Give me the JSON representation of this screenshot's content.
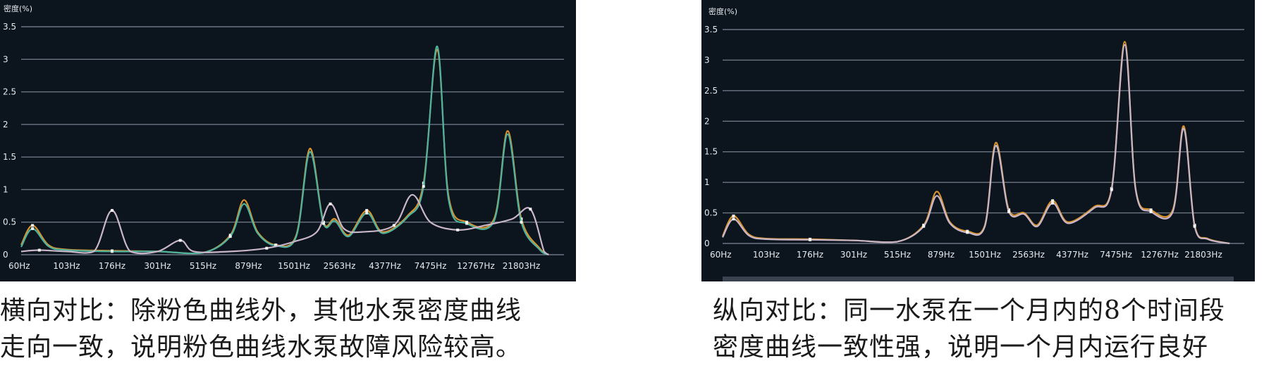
{
  "chart_data": [
    {
      "type": "line",
      "ylabel": "密度(%)",
      "ylim": [
        0,
        3.5
      ],
      "yticks": [
        "0",
        "0.5",
        "1",
        "1.5",
        "2",
        "2.5",
        "3",
        "3.5"
      ],
      "categories": [
        "60Hz",
        "103Hz",
        "176Hz",
        "301Hz",
        "515Hz",
        "879Hz",
        "1501Hz",
        "2563Hz",
        "4377Hz",
        "7475Hz",
        "12767Hz",
        "21803Hz"
      ],
      "grid": true,
      "series": [
        {
          "color": "#d9932e",
          "points": [
            [
              0,
              0.15
            ],
            [
              0.25,
              0.45
            ],
            [
              0.6,
              0.15
            ],
            [
              1,
              0.08
            ],
            [
              2,
              0.06
            ],
            [
              3,
              0.05
            ],
            [
              4,
              0.03
            ],
            [
              4.6,
              0.3
            ],
            [
              4.9,
              0.84
            ],
            [
              5.2,
              0.35
            ],
            [
              5.6,
              0.15
            ],
            [
              6.05,
              0.3
            ],
            [
              6.35,
              1.63
            ],
            [
              6.65,
              0.5
            ],
            [
              6.9,
              0.55
            ],
            [
              7.2,
              0.3
            ],
            [
              7.6,
              0.68
            ],
            [
              7.95,
              0.35
            ],
            [
              8.5,
              0.6
            ],
            [
              8.85,
              1.1
            ],
            [
              9.15,
              3.15
            ],
            [
              9.4,
              0.9
            ],
            [
              9.8,
              0.5
            ],
            [
              10.4,
              0.55
            ],
            [
              10.7,
              1.9
            ],
            [
              11.0,
              0.55
            ],
            [
              11.4,
              0.1
            ],
            [
              11.6,
              0.0
            ]
          ]
        },
        {
          "color": "#4db3a0",
          "points": [
            [
              0,
              0.12
            ],
            [
              0.25,
              0.4
            ],
            [
              0.6,
              0.13
            ],
            [
              1,
              0.07
            ],
            [
              2,
              0.05
            ],
            [
              3,
              0.05
            ],
            [
              4,
              0.03
            ],
            [
              4.6,
              0.28
            ],
            [
              4.9,
              0.78
            ],
            [
              5.2,
              0.33
            ],
            [
              5.6,
              0.14
            ],
            [
              6.05,
              0.28
            ],
            [
              6.35,
              1.58
            ],
            [
              6.65,
              0.48
            ],
            [
              6.9,
              0.52
            ],
            [
              7.2,
              0.28
            ],
            [
              7.6,
              0.64
            ],
            [
              7.95,
              0.33
            ],
            [
              8.5,
              0.58
            ],
            [
              8.85,
              1.05
            ],
            [
              9.15,
              3.2
            ],
            [
              9.4,
              0.85
            ],
            [
              9.8,
              0.48
            ],
            [
              10.4,
              0.52
            ],
            [
              10.7,
              1.85
            ],
            [
              11.0,
              0.5
            ],
            [
              11.4,
              0.08
            ],
            [
              11.6,
              0.0
            ]
          ]
        },
        {
          "color": "#c9b7c9",
          "points": [
            [
              0,
              0.05
            ],
            [
              0.4,
              0.07
            ],
            [
              1,
              0.05
            ],
            [
              1.6,
              0.05
            ],
            [
              2.0,
              0.68
            ],
            [
              2.4,
              0.05
            ],
            [
              3.0,
              0.05
            ],
            [
              3.5,
              0.22
            ],
            [
              3.8,
              0.05
            ],
            [
              4.6,
              0.05
            ],
            [
              5.4,
              0.1
            ],
            [
              6.0,
              0.2
            ],
            [
              6.5,
              0.35
            ],
            [
              6.8,
              0.78
            ],
            [
              7.1,
              0.4
            ],
            [
              7.5,
              0.35
            ],
            [
              8.2,
              0.45
            ],
            [
              8.6,
              0.92
            ],
            [
              9.0,
              0.5
            ],
            [
              9.6,
              0.38
            ],
            [
              10.2,
              0.45
            ],
            [
              10.8,
              0.55
            ],
            [
              11.2,
              0.7
            ],
            [
              11.5,
              0.05
            ],
            [
              11.6,
              0.0
            ]
          ]
        }
      ]
    },
    {
      "type": "line",
      "ylabel": "密度(%)",
      "ylim": [
        0,
        3.5
      ],
      "yticks": [
        "0",
        "0.5",
        "1",
        "1.5",
        "2",
        "2.5",
        "3",
        "3.5"
      ],
      "categories": [
        "60Hz",
        "103Hz",
        "176Hz",
        "301Hz",
        "515Hz",
        "879Hz",
        "1501Hz",
        "2563Hz",
        "4377Hz",
        "7475Hz",
        "12767Hz",
        "21803Hz"
      ],
      "grid": true,
      "series": [
        {
          "color": "#d9932e",
          "points": [
            [
              0,
              0.12
            ],
            [
              0.25,
              0.45
            ],
            [
              0.6,
              0.15
            ],
            [
              1,
              0.08
            ],
            [
              2,
              0.07
            ],
            [
              3,
              0.05
            ],
            [
              4,
              0.03
            ],
            [
              4.6,
              0.3
            ],
            [
              4.9,
              0.85
            ],
            [
              5.2,
              0.35
            ],
            [
              5.6,
              0.2
            ],
            [
              6.0,
              0.3
            ],
            [
              6.25,
              1.65
            ],
            [
              6.55,
              0.55
            ],
            [
              6.9,
              0.5
            ],
            [
              7.2,
              0.3
            ],
            [
              7.55,
              0.7
            ],
            [
              7.9,
              0.35
            ],
            [
              8.5,
              0.6
            ],
            [
              8.9,
              0.9
            ],
            [
              9.2,
              3.3
            ],
            [
              9.45,
              0.9
            ],
            [
              9.8,
              0.55
            ],
            [
              10.3,
              0.55
            ],
            [
              10.55,
              1.92
            ],
            [
              10.8,
              0.3
            ],
            [
              11.1,
              0.08
            ],
            [
              11.6,
              0.0
            ]
          ]
        },
        {
          "color": "#c9b7c9",
          "points": [
            [
              0,
              0.1
            ],
            [
              0.25,
              0.4
            ],
            [
              0.6,
              0.13
            ],
            [
              1,
              0.07
            ],
            [
              2,
              0.06
            ],
            [
              3,
              0.05
            ],
            [
              4,
              0.03
            ],
            [
              4.6,
              0.28
            ],
            [
              4.9,
              0.78
            ],
            [
              5.2,
              0.33
            ],
            [
              5.6,
              0.18
            ],
            [
              6.0,
              0.28
            ],
            [
              6.25,
              1.6
            ],
            [
              6.55,
              0.52
            ],
            [
              6.9,
              0.48
            ],
            [
              7.2,
              0.28
            ],
            [
              7.55,
              0.66
            ],
            [
              7.9,
              0.33
            ],
            [
              8.5,
              0.58
            ],
            [
              8.9,
              0.88
            ],
            [
              9.2,
              3.25
            ],
            [
              9.45,
              0.88
            ],
            [
              9.8,
              0.52
            ],
            [
              10.3,
              0.52
            ],
            [
              10.55,
              1.88
            ],
            [
              10.8,
              0.28
            ],
            [
              11.1,
              0.07
            ],
            [
              11.6,
              0.0
            ]
          ]
        }
      ]
    }
  ],
  "captions": {
    "left": [
      "横向对比：除粉色曲线外，其他水泵密度曲线",
      "走向一致，说明粉色曲线水泵故障风险较高。"
    ],
    "right": [
      "纵向对比：同一水泵在一个月内的8个时间段",
      "密度曲线一致性强，说明一个月内运行良好"
    ]
  }
}
